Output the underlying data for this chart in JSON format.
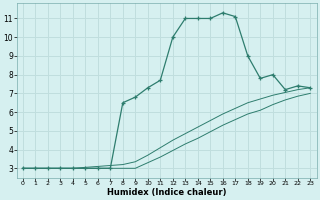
{
  "xlabel": "Humidex (Indice chaleur)",
  "bg_color": "#d6f0f0",
  "line_color": "#2e7d6e",
  "grid_color": "#c0dede",
  "xlim": [
    -0.5,
    23.5
  ],
  "ylim": [
    2.5,
    11.8
  ],
  "xticks": [
    0,
    1,
    2,
    3,
    4,
    5,
    6,
    7,
    8,
    9,
    10,
    11,
    12,
    13,
    14,
    15,
    16,
    17,
    18,
    19,
    20,
    21,
    22,
    23
  ],
  "yticks": [
    3,
    4,
    5,
    6,
    7,
    8,
    9,
    10,
    11
  ],
  "curve1_x": [
    0,
    1,
    2,
    3,
    4,
    5,
    6,
    7,
    8,
    9,
    10,
    11,
    12,
    13,
    14,
    15,
    16,
    17,
    18,
    19,
    20,
    21,
    22,
    23
  ],
  "curve1_y": [
    3.0,
    3.0,
    3.0,
    3.0,
    3.0,
    3.0,
    3.0,
    3.0,
    6.5,
    6.8,
    7.3,
    7.7,
    10.0,
    11.0,
    11.0,
    11.0,
    11.3,
    11.1,
    9.0,
    7.8,
    8.0,
    7.2,
    7.4,
    7.3
  ],
  "curve2_x": [
    0,
    1,
    2,
    3,
    4,
    5,
    6,
    7,
    8,
    9,
    10,
    11,
    12,
    13,
    14,
    15,
    16,
    17,
    18,
    19,
    20,
    21,
    22,
    23
  ],
  "curve2_y": [
    3.0,
    3.0,
    3.0,
    3.0,
    3.0,
    3.05,
    3.1,
    3.15,
    3.2,
    3.35,
    3.7,
    4.1,
    4.5,
    4.85,
    5.2,
    5.55,
    5.9,
    6.2,
    6.5,
    6.7,
    6.9,
    7.05,
    7.2,
    7.3
  ],
  "curve3_x": [
    0,
    1,
    2,
    3,
    4,
    5,
    6,
    7,
    8,
    9,
    10,
    11,
    12,
    13,
    14,
    15,
    16,
    17,
    18,
    19,
    20,
    21,
    22,
    23
  ],
  "curve3_y": [
    3.0,
    3.0,
    3.0,
    3.0,
    3.0,
    3.0,
    3.0,
    3.0,
    3.0,
    3.0,
    3.3,
    3.6,
    3.95,
    4.3,
    4.6,
    4.95,
    5.3,
    5.6,
    5.9,
    6.1,
    6.4,
    6.65,
    6.85,
    7.0
  ]
}
